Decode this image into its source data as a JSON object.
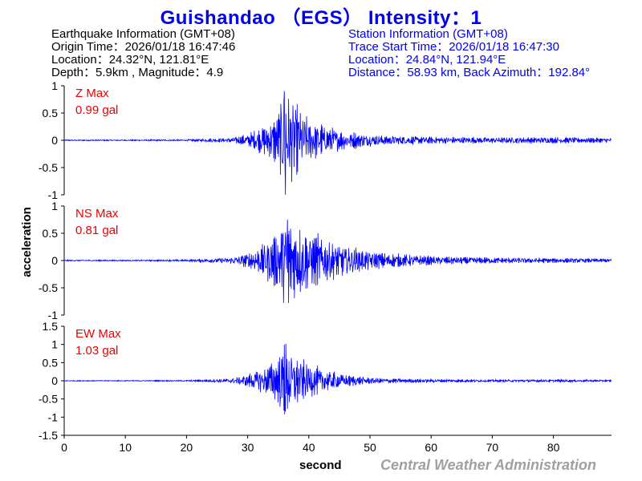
{
  "title": "Guishandao （EGS） Intensity：1",
  "earthquake_info": {
    "header": "Earthquake Information (GMT+08)",
    "origin_time": "Origin Time：2026/01/18 16:47:46",
    "location": "Location：24.32°N, 121.81°E",
    "depth_magnitude": "Depth：5.9km , Magnitude：4.9"
  },
  "station_info": {
    "header": "Station Information (GMT+08)",
    "trace_start": "Trace Start Time：2026/01/18 16:47:30",
    "location": "Location：24.84°N, 121.94°E",
    "distance": "Distance：58.93 km, Back Azimuth：192.84°"
  },
  "footer": "Central Weather Administration",
  "colors": {
    "title": "#0000ee",
    "trace": "#0000ff",
    "max_label": "#ee0000",
    "station_text": "#0000ee",
    "footer": "#a0a0a0"
  },
  "chart_data": [
    {
      "type": "line",
      "component": "Z",
      "max_label": "Z Max",
      "max_value": "0.99 gal",
      "ylim": [
        -1,
        1
      ],
      "yticks": [
        "-1",
        "-0.5",
        "0",
        "0.5",
        "1"
      ],
      "envelope": {
        "x": [
          0,
          10,
          20,
          27,
          30,
          33,
          35,
          36,
          38,
          40,
          43,
          46,
          50,
          55,
          60,
          70,
          80,
          89.5
        ],
        "amplitude": [
          0.01,
          0.01,
          0.015,
          0.04,
          0.1,
          0.25,
          0.45,
          0.9,
          0.55,
          0.35,
          0.22,
          0.15,
          0.1,
          0.07,
          0.06,
          0.05,
          0.05,
          0.04
        ]
      },
      "peak": {
        "x": 36,
        "y": 0.9,
        "min_y": -1.0
      }
    },
    {
      "type": "line",
      "component": "NS",
      "max_label": "NS Max",
      "max_value": "0.81 gal",
      "ylim": [
        -1,
        1
      ],
      "yticks": [
        "-1",
        "-0.5",
        "0",
        "0.5",
        "1"
      ],
      "envelope": {
        "x": [
          0,
          10,
          20,
          27,
          30,
          33,
          35,
          36.5,
          38,
          40,
          43,
          46,
          50,
          55,
          60,
          70,
          80,
          89.5
        ],
        "amplitude": [
          0.01,
          0.01,
          0.015,
          0.05,
          0.12,
          0.3,
          0.5,
          0.75,
          0.6,
          0.45,
          0.35,
          0.25,
          0.15,
          0.1,
          0.07,
          0.05,
          0.04,
          0.03
        ]
      },
      "peak": {
        "x": 36.5,
        "y": 0.75,
        "min_y": -0.78
      }
    },
    {
      "type": "line",
      "component": "EW",
      "max_label": "EW Max",
      "max_value": "1.03 gal",
      "ylim": [
        -1.5,
        1.5
      ],
      "yticks": [
        "-1.5",
        "-1",
        "-0.5",
        "0",
        "0.5",
        "1",
        "1.5"
      ],
      "envelope": {
        "x": [
          0,
          10,
          20,
          27,
          30,
          33,
          35,
          36,
          38,
          40,
          43,
          46,
          50,
          55,
          60,
          70,
          80,
          89.5
        ],
        "amplitude": [
          0.01,
          0.01,
          0.015,
          0.05,
          0.15,
          0.35,
          0.6,
          0.9,
          0.6,
          0.4,
          0.25,
          0.15,
          0.08,
          0.05,
          0.04,
          0.03,
          0.03,
          0.02
        ]
      },
      "peak": {
        "x": 36,
        "y": 1.0,
        "min_y": -0.85
      }
    }
  ],
  "x_axis": {
    "label": "second",
    "ticks": [
      "0",
      "10",
      "20",
      "30",
      "40",
      "50",
      "60",
      "70",
      "80"
    ],
    "xlim": [
      0,
      89.5
    ]
  },
  "y_axis": {
    "label": "acceleration"
  }
}
